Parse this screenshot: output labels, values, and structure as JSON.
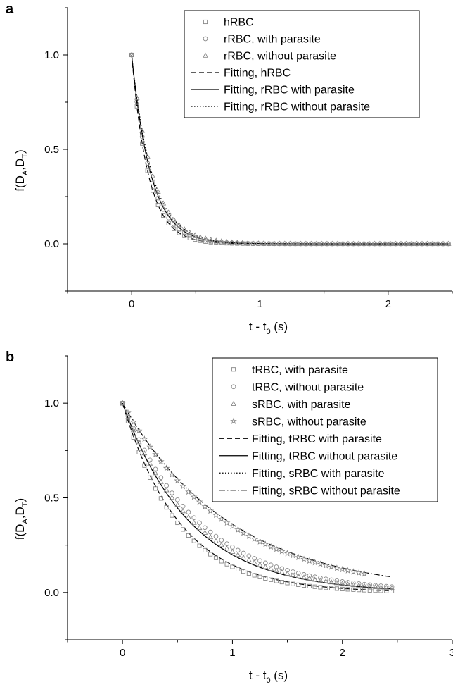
{
  "chart_data": [
    {
      "panel": "a",
      "type": "scatter",
      "xlabel": "t - t",
      "xlabel_sub": "0",
      "xlabel_unit": " (s)",
      "ylabel": "f(D",
      "ylabel_sub1": "A",
      "ylabel_mid": ",D",
      "ylabel_sub2": "T",
      "ylabel_end": ")",
      "xlim": [
        -0.5,
        2.5
      ],
      "ylim": [
        -0.25,
        1.25
      ],
      "xticks": [
        0,
        1,
        2
      ],
      "xtick_labels": [
        "0",
        "1",
        "2"
      ],
      "yticks": [
        0.0,
        0.5,
        1.0
      ],
      "ytick_labels": [
        "0.0",
        "0.5",
        "1.0"
      ],
      "grid": false,
      "legend_position": "top-right",
      "series": [
        {
          "name": "hRBC",
          "kind": "marker",
          "marker": "square",
          "tau": 0.13,
          "x_start": 0,
          "x_end": 2.47,
          "n": 61
        },
        {
          "name": "rRBC, with parasite",
          "kind": "marker",
          "marker": "circle",
          "tau": 0.145,
          "x_start": 0,
          "x_end": 2.47,
          "n": 61
        },
        {
          "name": "rRBC, without parasite",
          "kind": "marker",
          "marker": "triangle",
          "tau": 0.16,
          "x_start": 0,
          "x_end": 2.47,
          "n": 61
        },
        {
          "name": "Fitting, hRBC",
          "kind": "line",
          "dash": "dashed",
          "tau": 0.13,
          "x_start": 0,
          "x_end": 2.47
        },
        {
          "name": "Fitting, rRBC with parasite",
          "kind": "line",
          "dash": "solid",
          "tau": 0.15,
          "x_start": 0,
          "x_end": 2.47
        },
        {
          "name": "Fitting, rRBC without parasite",
          "kind": "line",
          "dash": "dotted",
          "tau": 0.16,
          "x_start": 0,
          "x_end": 2.47
        }
      ]
    },
    {
      "panel": "b",
      "type": "scatter",
      "xlabel": "t - t",
      "xlabel_sub": "0",
      "xlabel_unit": " (s)",
      "ylabel": "f(D",
      "ylabel_sub1": "A",
      "ylabel_mid": ",D",
      "ylabel_sub2": "T",
      "ylabel_end": ")",
      "xlim": [
        -0.5,
        3
      ],
      "ylim": [
        -0.25,
        1.25
      ],
      "xticks": [
        0,
        1,
        2,
        3
      ],
      "xtick_labels": [
        "0",
        "1",
        "2",
        "3"
      ],
      "yticks": [
        0.0,
        0.5,
        1.0
      ],
      "ytick_labels": [
        "0.0",
        "0.5",
        "1.0"
      ],
      "grid": false,
      "legend_position": "top-right",
      "series": [
        {
          "name": "tRBC, with parasite",
          "kind": "marker",
          "marker": "square",
          "tau": 0.5,
          "x_start": 0,
          "x_end": 2.45,
          "n": 50
        },
        {
          "name": "tRBC, without parasite",
          "kind": "marker",
          "marker": "circle",
          "tau": 0.7,
          "x_start": 0,
          "x_end": 2.45,
          "n": 50
        },
        {
          "name": "sRBC, with parasite",
          "kind": "marker",
          "marker": "triangle",
          "tau": 0.65,
          "x_start": 0,
          "x_end": 2.45,
          "n": 50
        },
        {
          "name": "sRBC, without parasite",
          "kind": "marker",
          "marker": "star",
          "tau": 0.95,
          "x_start": 0,
          "x_end": 2.2,
          "n": 45
        },
        {
          "name": "Fitting, tRBC with parasite",
          "kind": "line",
          "dash": "dashed",
          "tau": 0.52,
          "x_start": 0,
          "x_end": 2.45
        },
        {
          "name": "Fitting, tRBC without parasite",
          "kind": "line",
          "dash": "solid",
          "tau": 0.62,
          "x_start": 0,
          "x_end": 2.45
        },
        {
          "name": "Fitting, sRBC with parasite",
          "kind": "line",
          "dash": "dotted",
          "tau": 0.62,
          "x_start": 0,
          "x_end": 2.45
        },
        {
          "name": "Fitting, sRBC without parasite",
          "kind": "line",
          "dash": "dashdot",
          "tau": 0.98,
          "x_start": 0,
          "x_end": 2.45
        }
      ]
    }
  ]
}
